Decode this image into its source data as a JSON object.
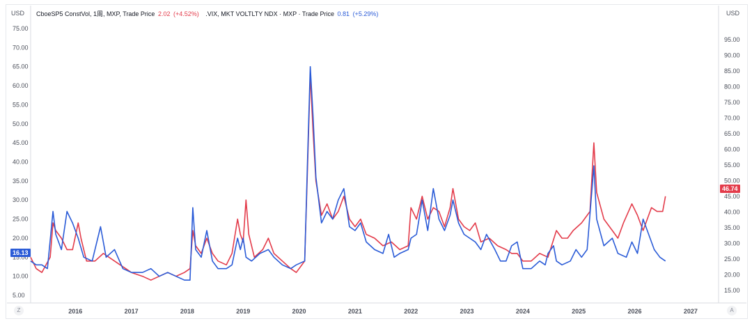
{
  "legend": {
    "series1_name": "CboeSP5 ConstVol, 1周, MXP, Trade Price",
    "series1_value": "2.02",
    "series1_change": "(+4.52%)",
    "series2_name": ".VIX, MKT VOLTLTY NDX · MXP · Trade Price",
    "series2_value": "0.81",
    "series2_change": "(+5.29%)"
  },
  "left_currency": "USD",
  "right_currency": "USD",
  "left_tag": "16.13",
  "right_tag": "46.74",
  "corner_left": "Z",
  "corner_right": "A",
  "colors": {
    "red": "#e33b4a",
    "blue": "#2a5bd7",
    "grid": "#f0f1f3"
  },
  "chart_data": {
    "type": "line",
    "left_axis": {
      "ticks": [
        "5.00",
        "10.00",
        "15.00",
        "20.00",
        "25.00",
        "30.00",
        "35.00",
        "40.00",
        "45.00",
        "50.00",
        "55.00",
        "60.00",
        "65.00",
        "70.00",
        "75.00"
      ],
      "range": [
        3,
        77
      ]
    },
    "right_axis": {
      "ticks": [
        "15.00",
        "20.00",
        "25.00",
        "30.00",
        "35.00",
        "40.00",
        "45.00",
        "50.00",
        "55.00",
        "60.00",
        "65.00",
        "70.00",
        "75.00",
        "80.00",
        "85.00",
        "90.00",
        "95.00"
      ],
      "range": [
        11,
        101
      ]
    },
    "x_ticks": [
      "2016",
      "2017",
      "2018",
      "2019",
      "2020",
      "2021",
      "2022",
      "2023",
      "2024",
      "2025",
      "2026",
      "2027"
    ],
    "x_range": [
      2015.2,
      2027.5
    ],
    "series": [
      {
        "color": "red",
        "axis": "left",
        "points": [
          [
            2015.2,
            15
          ],
          [
            2015.3,
            12
          ],
          [
            2015.4,
            11
          ],
          [
            2015.55,
            15
          ],
          [
            2015.6,
            24
          ],
          [
            2015.65,
            22
          ],
          [
            2015.75,
            20
          ],
          [
            2015.85,
            17
          ],
          [
            2015.95,
            17
          ],
          [
            2016.05,
            24
          ],
          [
            2016.1,
            20
          ],
          [
            2016.2,
            14
          ],
          [
            2016.35,
            14
          ],
          [
            2016.5,
            16
          ],
          [
            2016.7,
            14
          ],
          [
            2016.8,
            13
          ],
          [
            2016.9,
            12
          ],
          [
            2017.0,
            11
          ],
          [
            2017.2,
            10
          ],
          [
            2017.35,
            9
          ],
          [
            2017.5,
            10
          ],
          [
            2017.65,
            11
          ],
          [
            2017.8,
            10
          ],
          [
            2017.95,
            11
          ],
          [
            2018.05,
            12
          ],
          [
            2018.1,
            22
          ],
          [
            2018.15,
            18
          ],
          [
            2018.25,
            16
          ],
          [
            2018.35,
            20
          ],
          [
            2018.45,
            16
          ],
          [
            2018.55,
            14
          ],
          [
            2018.7,
            13
          ],
          [
            2018.8,
            16
          ],
          [
            2018.9,
            25
          ],
          [
            2018.95,
            21
          ],
          [
            2019.0,
            19
          ],
          [
            2019.05,
            30
          ],
          [
            2019.1,
            21
          ],
          [
            2019.2,
            15
          ],
          [
            2019.35,
            17
          ],
          [
            2019.45,
            20
          ],
          [
            2019.55,
            16
          ],
          [
            2019.7,
            14
          ],
          [
            2019.85,
            12
          ],
          [
            2019.95,
            11
          ],
          [
            2020.1,
            14
          ],
          [
            2020.15,
            38
          ],
          [
            2020.2,
            63
          ],
          [
            2020.25,
            48
          ],
          [
            2020.3,
            35
          ],
          [
            2020.4,
            26
          ],
          [
            2020.5,
            29
          ],
          [
            2020.6,
            25
          ],
          [
            2020.7,
            27
          ],
          [
            2020.8,
            31
          ],
          [
            2020.9,
            25
          ],
          [
            2021.0,
            23
          ],
          [
            2021.1,
            25
          ],
          [
            2021.2,
            21
          ],
          [
            2021.35,
            20
          ],
          [
            2021.5,
            18
          ],
          [
            2021.65,
            19
          ],
          [
            2021.8,
            17
          ],
          [
            2021.95,
            18
          ],
          [
            2022.0,
            28
          ],
          [
            2022.1,
            25
          ],
          [
            2022.2,
            31
          ],
          [
            2022.3,
            25
          ],
          [
            2022.4,
            28
          ],
          [
            2022.5,
            27
          ],
          [
            2022.6,
            23
          ],
          [
            2022.7,
            28
          ],
          [
            2022.75,
            33
          ],
          [
            2022.85,
            25
          ],
          [
            2022.95,
            23
          ],
          [
            2023.05,
            22
          ],
          [
            2023.15,
            24
          ],
          [
            2023.25,
            19
          ],
          [
            2023.4,
            20
          ],
          [
            2023.55,
            18
          ],
          [
            2023.7,
            17
          ],
          [
            2023.8,
            16
          ],
          [
            2023.9,
            16
          ],
          [
            2024.0,
            14
          ],
          [
            2024.15,
            14
          ],
          [
            2024.3,
            16
          ],
          [
            2024.45,
            15
          ],
          [
            2024.6,
            22
          ],
          [
            2024.7,
            20
          ],
          [
            2024.8,
            20
          ],
          [
            2024.9,
            22
          ],
          [
            2025.05,
            24
          ],
          [
            2025.2,
            27
          ],
          [
            2025.27,
            45
          ],
          [
            2025.32,
            32
          ],
          [
            2025.45,
            25
          ],
          [
            2025.6,
            22
          ],
          [
            2025.7,
            20
          ],
          [
            2025.8,
            24
          ],
          [
            2025.95,
            29
          ],
          [
            2026.05,
            26
          ],
          [
            2026.15,
            22
          ],
          [
            2026.3,
            28
          ],
          [
            2026.4,
            27
          ],
          [
            2026.5,
            27
          ],
          [
            2026.55,
            31
          ]
        ]
      },
      {
        "color": "blue",
        "axis": "left",
        "points": [
          [
            2015.2,
            14
          ],
          [
            2015.3,
            13
          ],
          [
            2015.4,
            13
          ],
          [
            2015.5,
            12
          ],
          [
            2015.6,
            27
          ],
          [
            2015.65,
            21
          ],
          [
            2015.75,
            17
          ],
          [
            2015.85,
            27
          ],
          [
            2015.95,
            24
          ],
          [
            2016.05,
            20
          ],
          [
            2016.15,
            15
          ],
          [
            2016.3,
            14
          ],
          [
            2016.45,
            23
          ],
          [
            2016.55,
            15
          ],
          [
            2016.7,
            17
          ],
          [
            2016.85,
            12
          ],
          [
            2017.0,
            11
          ],
          [
            2017.2,
            11
          ],
          [
            2017.35,
            12
          ],
          [
            2017.5,
            10
          ],
          [
            2017.65,
            11
          ],
          [
            2017.8,
            10
          ],
          [
            2017.95,
            9
          ],
          [
            2018.05,
            9
          ],
          [
            2018.1,
            28
          ],
          [
            2018.15,
            17
          ],
          [
            2018.25,
            15
          ],
          [
            2018.35,
            22
          ],
          [
            2018.45,
            14
          ],
          [
            2018.55,
            12
          ],
          [
            2018.7,
            12
          ],
          [
            2018.8,
            13
          ],
          [
            2018.9,
            20
          ],
          [
            2018.95,
            17
          ],
          [
            2019.0,
            20
          ],
          [
            2019.05,
            15
          ],
          [
            2019.15,
            14
          ],
          [
            2019.3,
            16
          ],
          [
            2019.45,
            17
          ],
          [
            2019.55,
            15
          ],
          [
            2019.7,
            13
          ],
          [
            2019.85,
            12
          ],
          [
            2019.95,
            13
          ],
          [
            2020.1,
            14
          ],
          [
            2020.15,
            40
          ],
          [
            2020.2,
            65
          ],
          [
            2020.25,
            52
          ],
          [
            2020.3,
            36
          ],
          [
            2020.4,
            24
          ],
          [
            2020.5,
            27
          ],
          [
            2020.6,
            25
          ],
          [
            2020.7,
            30
          ],
          [
            2020.8,
            33
          ],
          [
            2020.9,
            23
          ],
          [
            2021.0,
            22
          ],
          [
            2021.1,
            24
          ],
          [
            2021.2,
            19
          ],
          [
            2021.35,
            17
          ],
          [
            2021.5,
            16
          ],
          [
            2021.6,
            21
          ],
          [
            2021.7,
            15
          ],
          [
            2021.8,
            16
          ],
          [
            2021.95,
            17
          ],
          [
            2022.0,
            20
          ],
          [
            2022.1,
            21
          ],
          [
            2022.2,
            30
          ],
          [
            2022.3,
            22
          ],
          [
            2022.4,
            33
          ],
          [
            2022.5,
            25
          ],
          [
            2022.6,
            22
          ],
          [
            2022.7,
            26
          ],
          [
            2022.75,
            30
          ],
          [
            2022.85,
            24
          ],
          [
            2022.95,
            21
          ],
          [
            2023.05,
            20
          ],
          [
            2023.15,
            19
          ],
          [
            2023.25,
            17
          ],
          [
            2023.35,
            21
          ],
          [
            2023.5,
            17
          ],
          [
            2023.6,
            14
          ],
          [
            2023.7,
            14
          ],
          [
            2023.8,
            18
          ],
          [
            2023.9,
            19
          ],
          [
            2024.0,
            12
          ],
          [
            2024.15,
            12
          ],
          [
            2024.3,
            14
          ],
          [
            2024.4,
            13
          ],
          [
            2024.45,
            16
          ],
          [
            2024.55,
            18
          ],
          [
            2024.6,
            14
          ],
          [
            2024.7,
            13
          ],
          [
            2024.85,
            14
          ],
          [
            2024.95,
            17
          ],
          [
            2025.05,
            15
          ],
          [
            2025.15,
            17
          ],
          [
            2025.27,
            39
          ],
          [
            2025.32,
            25
          ],
          [
            2025.45,
            18
          ],
          [
            2025.6,
            20
          ],
          [
            2025.7,
            16
          ],
          [
            2025.85,
            15
          ],
          [
            2025.95,
            19
          ],
          [
            2026.05,
            16
          ],
          [
            2026.15,
            25
          ],
          [
            2026.25,
            21
          ],
          [
            2026.35,
            17
          ],
          [
            2026.45,
            15
          ],
          [
            2026.55,
            14
          ]
        ]
      }
    ]
  }
}
